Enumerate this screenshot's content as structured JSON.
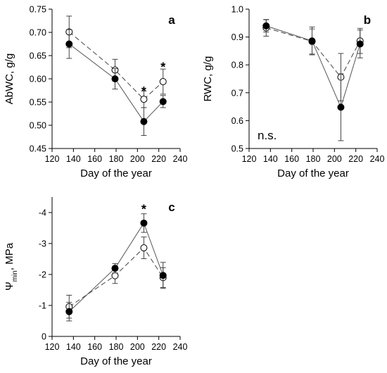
{
  "chart_data": [
    {
      "panel": "a",
      "type": "line",
      "xlabel": "Day of the year",
      "ylabel": "AbWC, g/g",
      "xlim": [
        120,
        240
      ],
      "ylim": [
        0.45,
        0.75
      ],
      "x_ticks": [
        "120",
        "140",
        "160",
        "180",
        "200",
        "220",
        "240"
      ],
      "y_ticks": [
        "0.45",
        "0.50",
        "0.55",
        "0.60",
        "0.65",
        "0.70",
        "0.75"
      ],
      "series": [
        {
          "marker": "filled",
          "line": "solid",
          "x": [
            136,
            179,
            206,
            224
          ],
          "y": [
            0.675,
            0.6,
            0.508,
            0.551
          ],
          "err": [
            0.031,
            0.022,
            0.03,
            0.013
          ]
        },
        {
          "marker": "open",
          "line": "dashed",
          "x": [
            136,
            179,
            206,
            224
          ],
          "y": [
            0.701,
            0.619,
            0.556,
            0.594
          ],
          "err": [
            0.034,
            0.023,
            0.018,
            0.027
          ]
        }
      ],
      "annotations": [
        {
          "text": "*",
          "x": 206,
          "y": 0.573
        },
        {
          "text": "*",
          "x": 224,
          "y": 0.625
        }
      ]
    },
    {
      "panel": "b",
      "type": "line",
      "xlabel": "Day of the year",
      "ylabel": "RWC, g/g",
      "xlim": [
        120,
        240
      ],
      "ylim": [
        0.5,
        1.0
      ],
      "x_ticks": [
        "120",
        "140",
        "160",
        "180",
        "200",
        "220",
        "240"
      ],
      "y_ticks": [
        "0.5",
        "0.6",
        "0.7",
        "0.8",
        "0.9",
        "1.0"
      ],
      "series": [
        {
          "marker": "filled",
          "line": "solid",
          "x": [
            136,
            179,
            206,
            224
          ],
          "y": [
            0.94,
            0.886,
            0.648,
            0.875
          ],
          "err": [
            0.022,
            0.05,
            0.12,
            0.05
          ]
        },
        {
          "marker": "open",
          "line": "dashed",
          "x": [
            136,
            179,
            206,
            224
          ],
          "y": [
            0.933,
            0.884,
            0.756,
            0.886
          ],
          "err": [
            0.03,
            0.045,
            0.085,
            0.045
          ]
        }
      ],
      "annotations": [
        {
          "text": "n.s.",
          "position": "bottom-left"
        }
      ]
    },
    {
      "panel": "c",
      "type": "line",
      "xlabel": "Day of the year",
      "ylabel": "Ψmin, MPa",
      "xlim": [
        120,
        240
      ],
      "ylim": [
        0,
        -4.5
      ],
      "x_ticks": [
        "120",
        "140",
        "160",
        "180",
        "200",
        "220",
        "240"
      ],
      "y_ticks": [
        "0",
        "-1",
        "-2",
        "-3",
        "-4"
      ],
      "series": [
        {
          "marker": "filled",
          "line": "solid",
          "x": [
            136,
            179,
            206,
            224
          ],
          "y": [
            -0.8,
            -2.2,
            -3.66,
            -1.97
          ],
          "err": [
            0.3,
            0.15,
            0.3,
            0.42
          ]
        },
        {
          "marker": "open",
          "line": "dashed",
          "x": [
            136,
            179,
            206,
            224
          ],
          "y": [
            -0.96,
            -1.96,
            -2.86,
            -1.9
          ],
          "err": [
            0.37,
            0.25,
            0.35,
            0.32
          ]
        }
      ],
      "annotations": [
        {
          "text": "*",
          "x": 206,
          "y": -4.1
        }
      ]
    }
  ]
}
